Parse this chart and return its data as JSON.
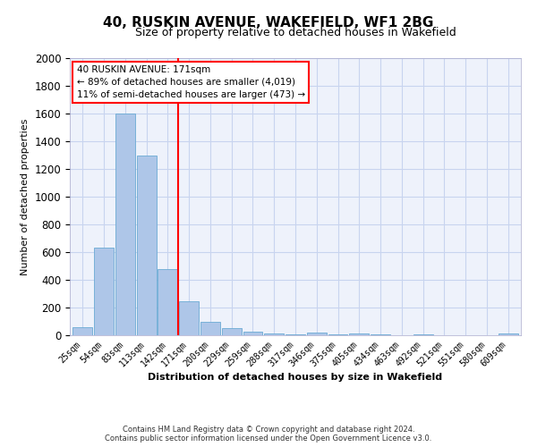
{
  "title": "40, RUSKIN AVENUE, WAKEFIELD, WF1 2BG",
  "subtitle": "Size of property relative to detached houses in Wakefield",
  "xlabel": "Distribution of detached houses by size in Wakefield",
  "ylabel": "Number of detached properties",
  "bar_labels": [
    "25sqm",
    "54sqm",
    "83sqm",
    "113sqm",
    "142sqm",
    "171sqm",
    "200sqm",
    "229sqm",
    "259sqm",
    "288sqm",
    "317sqm",
    "346sqm",
    "375sqm",
    "405sqm",
    "434sqm",
    "463sqm",
    "492sqm",
    "521sqm",
    "551sqm",
    "580sqm",
    "609sqm"
  ],
  "bar_values": [
    60,
    630,
    1600,
    1300,
    475,
    245,
    100,
    50,
    28,
    15,
    8,
    20,
    5,
    15,
    5,
    0,
    5,
    0,
    0,
    0,
    10
  ],
  "bar_color": "#aec6e8",
  "bar_edge_color": "#6aaad4",
  "vline_color": "red",
  "vline_index": 5,
  "ylim": [
    0,
    2000
  ],
  "yticks": [
    0,
    200,
    400,
    600,
    800,
    1000,
    1200,
    1400,
    1600,
    1800,
    2000
  ],
  "annotation_line1": "40 RUSKIN AVENUE: 171sqm",
  "annotation_line2": "← 89% of detached houses are smaller (4,019)",
  "annotation_line3": "11% of semi-detached houses are larger (473) →",
  "footer_line1": "Contains HM Land Registry data © Crown copyright and database right 2024.",
  "footer_line2": "Contains public sector information licensed under the Open Government Licence v3.0.",
  "bg_color": "#eef2fb",
  "grid_color": "#c8d4ef",
  "title_fontsize": 11,
  "subtitle_fontsize": 9,
  "axis_label_fontsize": 8,
  "tick_fontsize": 7,
  "ylabel_fontsize": 8,
  "footer_fontsize": 6,
  "annotation_fontsize": 7.5
}
